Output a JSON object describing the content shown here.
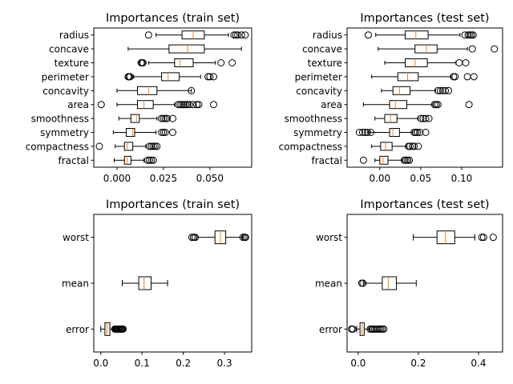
{
  "chart_data": [
    {
      "type": "boxplot",
      "orientation": "horizontal",
      "title": "Importances (train set)",
      "xlim": [
        -0.0125,
        0.0725
      ],
      "xticks": [
        0.0,
        0.025,
        0.05
      ],
      "xtick_labels": [
        "0.000",
        "0.025",
        "0.050"
      ],
      "categories": [
        "radius",
        "concave",
        "texture",
        "perimeter",
        "concavity",
        "area",
        "smoothness",
        "symmetry",
        "compactness",
        "fractal"
      ],
      "boxes": [
        {
          "whislo": 0.021,
          "q1": 0.035,
          "med": 0.041,
          "q3": 0.047,
          "whishi": 0.06,
          "fliers": [
            0.017,
            0.063,
            0.064,
            0.065,
            0.067,
            0.069
          ]
        },
        {
          "whislo": 0.006,
          "q1": 0.028,
          "med": 0.038,
          "q3": 0.047,
          "whishi": 0.067,
          "fliers": []
        },
        {
          "whislo": 0.017,
          "q1": 0.031,
          "med": 0.034,
          "q3": 0.041,
          "whishi": 0.053,
          "fliers": [
            0.013,
            0.0135,
            0.014,
            0.056,
            0.062
          ]
        },
        {
          "whislo": 0.009,
          "q1": 0.024,
          "med": 0.0275,
          "q3": 0.0335,
          "whishi": 0.045,
          "fliers": [
            0.006,
            0.0065,
            0.007,
            0.049,
            0.05,
            0.052
          ]
        },
        {
          "whislo": 0.0,
          "q1": 0.011,
          "med": 0.017,
          "q3": 0.0215,
          "whishi": 0.04,
          "fliers": [
            0.04
          ]
        },
        {
          "whislo": 0.0,
          "q1": 0.011,
          "med": 0.0145,
          "q3": 0.0195,
          "whishi": 0.031,
          "fliers": [
            -0.0085,
            0.033,
            0.034,
            0.035,
            0.036,
            0.037,
            0.038,
            0.039,
            0.041,
            0.043,
            0.044,
            0.052
          ]
        },
        {
          "whislo": 0.001,
          "q1": 0.0075,
          "med": 0.0105,
          "q3": 0.012,
          "whishi": 0.0215,
          "fliers": [
            0.024,
            0.025,
            0.026,
            0.027,
            0.03
          ]
        },
        {
          "whislo": -0.002,
          "q1": 0.005,
          "med": 0.0085,
          "q3": 0.0095,
          "whishi": 0.021,
          "fliers": [
            0.024,
            0.025,
            0.026,
            0.03
          ]
        },
        {
          "whislo": -0.001,
          "q1": 0.004,
          "med": 0.0055,
          "q3": 0.0085,
          "whishi": 0.0155,
          "fliers": [
            -0.0095,
            0.0175,
            0.0185,
            0.0195,
            0.0205,
            0.0215
          ]
        },
        {
          "whislo": -0.0015,
          "q1": 0.004,
          "med": 0.0055,
          "q3": 0.0075,
          "whishi": 0.0145,
          "fliers": [
            0.0165,
            0.0175,
            0.0185,
            0.0195
          ]
        }
      ]
    },
    {
      "type": "boxplot",
      "orientation": "horizontal",
      "title": "Importances (test set)",
      "xlim": [
        -0.04,
        0.15
      ],
      "xticks": [
        0.0,
        0.05,
        0.1
      ],
      "xtick_labels": [
        "0.00",
        "0.05",
        "0.10"
      ],
      "categories": [
        "radius",
        "concave",
        "texture",
        "perimeter",
        "concavity",
        "area",
        "smoothness",
        "symmetry",
        "compactness",
        "fractal"
      ],
      "boxes": [
        {
          "whislo": -0.005,
          "q1": 0.031,
          "med": 0.044,
          "q3": 0.059,
          "whishi": 0.098,
          "fliers": [
            -0.014,
            0.104,
            0.108,
            0.11,
            0.112,
            0.114
          ]
        },
        {
          "whislo": -0.002,
          "q1": 0.043,
          "med": 0.057,
          "q3": 0.07,
          "whishi": 0.107,
          "fliers": [
            0.14,
            0.113
          ]
        },
        {
          "whislo": 0.006,
          "q1": 0.031,
          "med": 0.043,
          "q3": 0.058,
          "whishi": 0.093,
          "fliers": [
            0.097,
            0.105
          ]
        },
        {
          "whislo": -0.01,
          "q1": 0.022,
          "med": 0.034,
          "q3": 0.047,
          "whishi": 0.087,
          "fliers": [
            0.09,
            0.092,
            0.107,
            0.115
          ]
        },
        {
          "whislo": 0.002,
          "q1": 0.016,
          "med": 0.024,
          "q3": 0.037,
          "whishi": 0.068,
          "fliers": [
            0.071,
            0.074,
            0.077,
            0.08,
            0.084
          ]
        },
        {
          "whislo": -0.02,
          "q1": 0.012,
          "med": 0.019,
          "q3": 0.033,
          "whishi": 0.065,
          "fliers": [
            0.067,
            0.069,
            0.071,
            0.109
          ]
        },
        {
          "whislo": -0.006,
          "q1": 0.006,
          "med": 0.013,
          "q3": 0.021,
          "whishi": 0.047,
          "fliers": [
            0.05,
            0.053,
            0.056,
            0.06
          ]
        },
        {
          "whislo": -0.013,
          "q1": 0.012,
          "med": 0.016,
          "q3": 0.024,
          "whishi": 0.04,
          "fliers": [
            -0.025,
            -0.021,
            -0.018,
            -0.015,
            -0.011,
            0.042,
            0.044,
            0.046,
            0.049,
            0.056
          ]
        },
        {
          "whislo": -0.01,
          "q1": 0.001,
          "med": 0.007,
          "q3": 0.015,
          "whishi": 0.032,
          "fliers": [
            0.035,
            0.037,
            0.04,
            0.042,
            0.047
          ]
        },
        {
          "whislo": -0.006,
          "q1": 0.0,
          "med": 0.004,
          "q3": 0.01,
          "whishi": 0.027,
          "fliers": [
            -0.02,
            0.03,
            0.032,
            0.034,
            0.036
          ]
        }
      ]
    },
    {
      "type": "boxplot",
      "orientation": "horizontal",
      "title": "Importances (train set)",
      "xlim": [
        -0.017,
        0.366
      ],
      "xticks": [
        0.0,
        0.1,
        0.2,
        0.3
      ],
      "xtick_labels": [
        "0.0",
        "0.1",
        "0.2",
        "0.3"
      ],
      "categories": [
        "worst",
        "mean",
        "error"
      ],
      "boxes": [
        {
          "whislo": 0.233,
          "q1": 0.277,
          "med": 0.29,
          "q3": 0.303,
          "whishi": 0.347,
          "fliers": [
            0.221,
            0.225,
            0.229,
            0.345,
            0.349,
            0.351
          ]
        },
        {
          "whislo": 0.052,
          "q1": 0.092,
          "med": 0.105,
          "q3": 0.122,
          "whishi": 0.162,
          "fliers": []
        },
        {
          "whislo": 0.0,
          "q1": 0.01,
          "med": 0.015,
          "q3": 0.022,
          "whishi": 0.032,
          "fliers": [
            0.034,
            0.036,
            0.038,
            0.04,
            0.042,
            0.044,
            0.046,
            0.048,
            0.05,
            0.052,
            0.054
          ]
        }
      ]
    },
    {
      "type": "boxplot",
      "orientation": "horizontal",
      "title": "Importances (test set)",
      "xlim": [
        -0.037,
        0.48
      ],
      "xticks": [
        0.0,
        0.2,
        0.4
      ],
      "xtick_labels": [
        "0.0",
        "0.2",
        "0.4"
      ],
      "categories": [
        "worst",
        "mean",
        "error"
      ],
      "boxes": [
        {
          "whislo": 0.183,
          "q1": 0.262,
          "med": 0.29,
          "q3": 0.321,
          "whishi": 0.388,
          "fliers": [
            0.411,
            0.417,
            0.449
          ]
        },
        {
          "whislo": 0.017,
          "q1": 0.08,
          "med": 0.1,
          "q3": 0.127,
          "whishi": 0.193,
          "fliers": [
            0.012,
            0.016
          ]
        },
        {
          "whislo": -0.005,
          "q1": 0.006,
          "med": 0.013,
          "q3": 0.02,
          "whishi": 0.037,
          "fliers": [
            -0.022,
            -0.018,
            0.04,
            0.045,
            0.05,
            0.055,
            0.06,
            0.065,
            0.07,
            0.075,
            0.08,
            0.085
          ]
        }
      ]
    }
  ],
  "colors": {
    "box": "#000000",
    "median": "#ff7f0e",
    "flier": "#000000",
    "background": "#ffffff"
  }
}
